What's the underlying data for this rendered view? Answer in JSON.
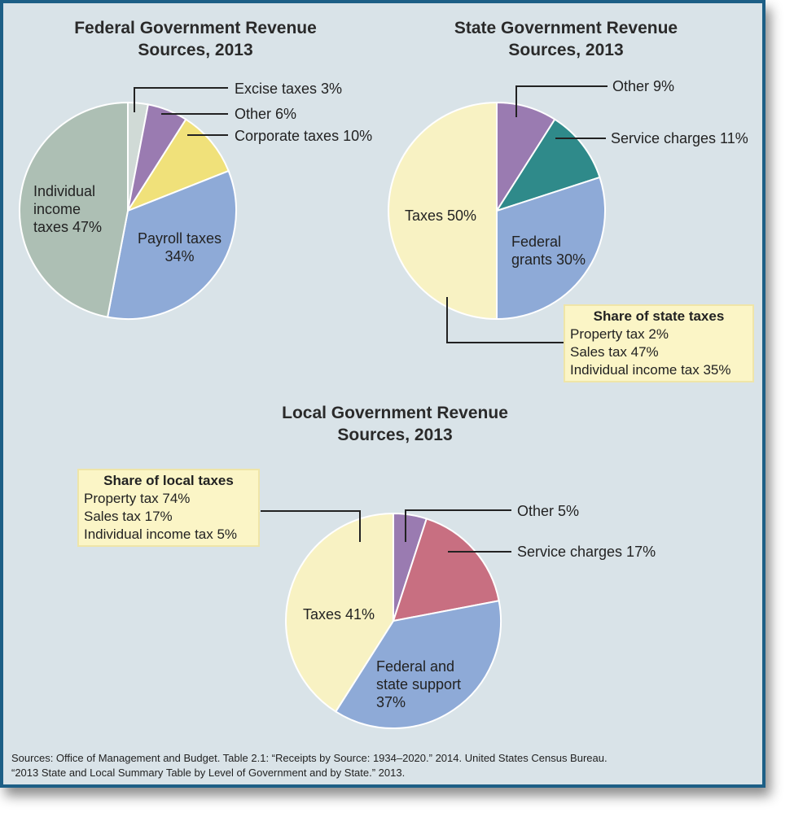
{
  "chart_data": [
    {
      "type": "pie",
      "title": "Federal Government Revenue Sources, 2013",
      "slices": [
        {
          "label": "Excise taxes",
          "value": 3,
          "color": "#d0dad6"
        },
        {
          "label": "Other",
          "value": 6,
          "color": "#9a7bb1"
        },
        {
          "label": "Corporate taxes",
          "value": 10,
          "color": "#f0e17a"
        },
        {
          "label": "Payroll taxes",
          "value": 34,
          "color": "#8eaad7"
        },
        {
          "label": "Individual income taxes",
          "value": 47,
          "color": "#adbfb4"
        }
      ],
      "labels": {
        "excise": "Excise taxes 3%",
        "other": "Other 6%",
        "corporate": "Corporate taxes 10%",
        "payroll": "Payroll taxes",
        "payroll_pct": "34%",
        "individual_1": "Individual",
        "individual_2": "income",
        "individual_3": "taxes 47%"
      }
    },
    {
      "type": "pie",
      "title": "State Government Revenue Sources, 2013",
      "slices": [
        {
          "label": "Other",
          "value": 9,
          "color": "#9a7bb1"
        },
        {
          "label": "Service charges",
          "value": 11,
          "color": "#2f8a8a"
        },
        {
          "label": "Federal grants",
          "value": 30,
          "color": "#8eaad7"
        },
        {
          "label": "Taxes",
          "value": 50,
          "color": "#f8f2c3"
        }
      ],
      "labels": {
        "other": "Other 9%",
        "service": "Service charges 11%",
        "federal_1": "Federal",
        "federal_2": "grants 30%",
        "taxes": "Taxes 50%"
      },
      "breakdown": {
        "title": "Share of state taxes",
        "items": [
          "Property tax 2%",
          "Sales tax 47%",
          "Individual income tax 35%"
        ]
      }
    },
    {
      "type": "pie",
      "title": "Local Government Revenue Sources, 2013",
      "slices": [
        {
          "label": "Other",
          "value": 5,
          "color": "#9a7bb1"
        },
        {
          "label": "Service charges",
          "value": 17,
          "color": "#c86f81"
        },
        {
          "label": "Federal and state support",
          "value": 37,
          "color": "#8eaad7"
        },
        {
          "label": "Taxes",
          "value": 41,
          "color": "#f8f2c3"
        }
      ],
      "labels": {
        "other": "Other 5%",
        "service": "Service charges 17%",
        "fed_1": "Federal and",
        "fed_2": "state support",
        "fed_3": "37%",
        "taxes": "Taxes 41%"
      },
      "breakdown": {
        "title": "Share of local taxes",
        "items": [
          "Property tax 74%",
          "Sales tax 17%",
          "Individual income tax 5%"
        ]
      }
    }
  ],
  "titles": {
    "federal_1": "Federal Government Revenue",
    "federal_2": "Sources, 2013",
    "state_1": "State Government Revenue",
    "state_2": "Sources, 2013",
    "local_1": "Local Government Revenue",
    "local_2": "Sources, 2013"
  },
  "sources": {
    "line1": "Sources: Office of Management and Budget. Table 2.1: “Receipts by Source: 1934–2020.” 2014. United States Census Bureau.",
    "line2": "“2013 State and Local Summary Table by Level of Government and by State.” 2013."
  }
}
